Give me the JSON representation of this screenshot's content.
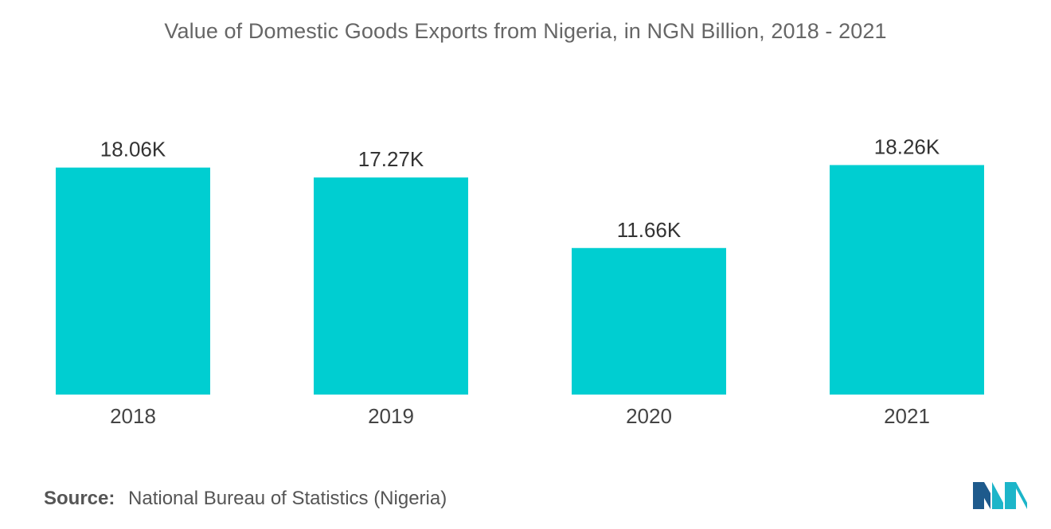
{
  "chart_data": {
    "type": "bar",
    "title": "Value of Domestic Goods Exports from Nigeria, in NGN Billion, 2018 - 2021",
    "categories": [
      "2018",
      "2019",
      "2020",
      "2021"
    ],
    "values": [
      18060,
      17270,
      11660,
      18260
    ],
    "value_labels": [
      "18.06K",
      "17.27K",
      "11.66K",
      "18.26K"
    ],
    "xlabel": "",
    "ylabel": "",
    "ylim": [
      0,
      20000
    ],
    "grid": false,
    "legend": "none",
    "bar_color": "#00CED1"
  },
  "source": {
    "prefix": "Source:",
    "text": "National Bureau of Statistics (Nigeria)"
  },
  "colors": {
    "bar": "#00CED1",
    "logo_dark": "#1E5A8C",
    "logo_light": "#1CB5C9"
  }
}
